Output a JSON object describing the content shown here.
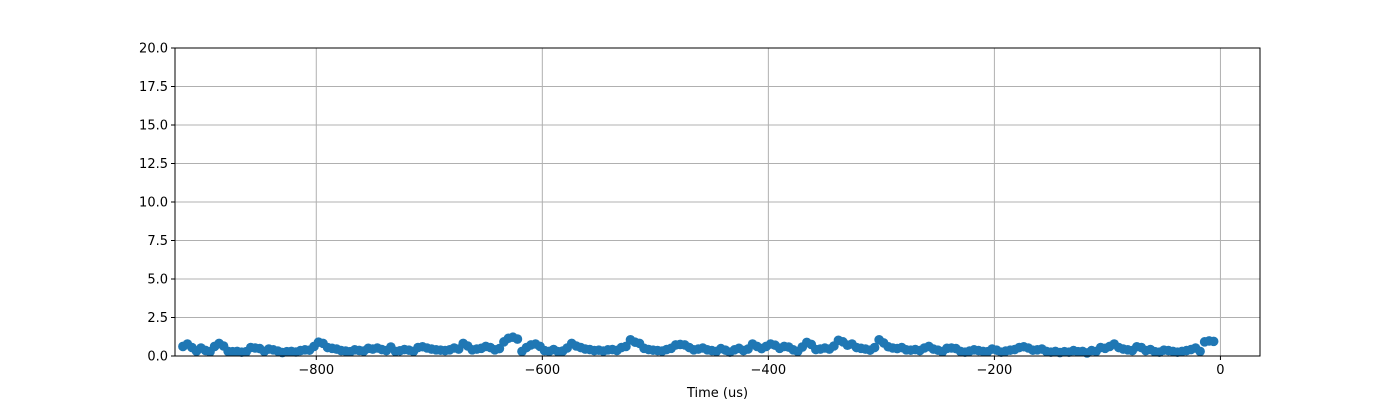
{
  "chart_data": {
    "type": "scatter",
    "title": "",
    "xlabel": "Time (us)",
    "ylabel": "",
    "xlim": [
      -925,
      35
    ],
    "ylim": [
      0,
      20
    ],
    "x_ticks": [
      -800,
      -600,
      -400,
      -200,
      0
    ],
    "x_tick_labels": [
      "−800",
      "−600",
      "−400",
      "−200",
      "0"
    ],
    "y_ticks": [
      0,
      2.5,
      5,
      7.5,
      10,
      12.5,
      15,
      17.5,
      20
    ],
    "y_tick_labels": [
      "0.0",
      "2.5",
      "5.0",
      "7.5",
      "10.0",
      "12.5",
      "15.0",
      "17.5",
      "20.0"
    ],
    "grid": true,
    "legend": "none",
    "series": [
      {
        "color": "#1f77b4",
        "points": [
          [
            -918,
            0.62
          ],
          [
            -914,
            0.78
          ],
          [
            -910,
            0.55
          ],
          [
            -906,
            0.32
          ],
          [
            -902,
            0.52
          ],
          [
            -898,
            0.36
          ],
          [
            -894,
            0.28
          ],
          [
            -890,
            0.62
          ],
          [
            -886,
            0.82
          ],
          [
            -882,
            0.65
          ],
          [
            -878,
            0.3
          ],
          [
            -874,
            0.28
          ],
          [
            -870,
            0.3
          ],
          [
            -866,
            0.25
          ],
          [
            -862,
            0.28
          ],
          [
            -858,
            0.55
          ],
          [
            -854,
            0.52
          ],
          [
            -850,
            0.48
          ],
          [
            -846,
            0.3
          ],
          [
            -842,
            0.45
          ],
          [
            -838,
            0.4
          ],
          [
            -834,
            0.32
          ],
          [
            -830,
            0.22
          ],
          [
            -826,
            0.28
          ],
          [
            -822,
            0.3
          ],
          [
            -818,
            0.26
          ],
          [
            -814,
            0.35
          ],
          [
            -810,
            0.4
          ],
          [
            -806,
            0.38
          ],
          [
            -802,
            0.62
          ],
          [
            -798,
            0.9
          ],
          [
            -794,
            0.82
          ],
          [
            -790,
            0.55
          ],
          [
            -786,
            0.5
          ],
          [
            -782,
            0.45
          ],
          [
            -778,
            0.35
          ],
          [
            -774,
            0.32
          ],
          [
            -770,
            0.28
          ],
          [
            -766,
            0.4
          ],
          [
            -762,
            0.36
          ],
          [
            -758,
            0.32
          ],
          [
            -754,
            0.5
          ],
          [
            -750,
            0.45
          ],
          [
            -746,
            0.52
          ],
          [
            -742,
            0.42
          ],
          [
            -738,
            0.35
          ],
          [
            -734,
            0.58
          ],
          [
            -730,
            0.3
          ],
          [
            -726,
            0.34
          ],
          [
            -722,
            0.42
          ],
          [
            -718,
            0.38
          ],
          [
            -714,
            0.3
          ],
          [
            -710,
            0.55
          ],
          [
            -706,
            0.6
          ],
          [
            -702,
            0.52
          ],
          [
            -698,
            0.45
          ],
          [
            -694,
            0.4
          ],
          [
            -690,
            0.38
          ],
          [
            -686,
            0.35
          ],
          [
            -682,
            0.4
          ],
          [
            -678,
            0.52
          ],
          [
            -674,
            0.45
          ],
          [
            -670,
            0.82
          ],
          [
            -666,
            0.65
          ],
          [
            -662,
            0.4
          ],
          [
            -658,
            0.45
          ],
          [
            -654,
            0.5
          ],
          [
            -650,
            0.62
          ],
          [
            -646,
            0.55
          ],
          [
            -642,
            0.4
          ],
          [
            -638,
            0.48
          ],
          [
            -634,
            0.92
          ],
          [
            -630,
            1.15
          ],
          [
            -626,
            1.22
          ],
          [
            -622,
            1.1
          ],
          [
            -618,
            0.3
          ],
          [
            -614,
            0.55
          ],
          [
            -610,
            0.72
          ],
          [
            -606,
            0.78
          ],
          [
            -602,
            0.62
          ],
          [
            -598,
            0.35
          ],
          [
            -594,
            0.3
          ],
          [
            -590,
            0.42
          ],
          [
            -586,
            0.28
          ],
          [
            -582,
            0.32
          ],
          [
            -578,
            0.52
          ],
          [
            -574,
            0.82
          ],
          [
            -570,
            0.65
          ],
          [
            -566,
            0.55
          ],
          [
            -562,
            0.45
          ],
          [
            -558,
            0.42
          ],
          [
            -554,
            0.35
          ],
          [
            -550,
            0.38
          ],
          [
            -546,
            0.32
          ],
          [
            -542,
            0.4
          ],
          [
            -538,
            0.42
          ],
          [
            -534,
            0.36
          ],
          [
            -530,
            0.55
          ],
          [
            -526,
            0.62
          ],
          [
            -522,
            1.05
          ],
          [
            -518,
            0.9
          ],
          [
            -514,
            0.82
          ],
          [
            -510,
            0.5
          ],
          [
            -506,
            0.42
          ],
          [
            -502,
            0.38
          ],
          [
            -498,
            0.35
          ],
          [
            -494,
            0.32
          ],
          [
            -490,
            0.42
          ],
          [
            -486,
            0.5
          ],
          [
            -482,
            0.72
          ],
          [
            -478,
            0.75
          ],
          [
            -474,
            0.72
          ],
          [
            -470,
            0.55
          ],
          [
            -466,
            0.4
          ],
          [
            -462,
            0.45
          ],
          [
            -458,
            0.52
          ],
          [
            -454,
            0.4
          ],
          [
            -450,
            0.35
          ],
          [
            -446,
            0.3
          ],
          [
            -442,
            0.48
          ],
          [
            -438,
            0.38
          ],
          [
            -434,
            0.25
          ],
          [
            -430,
            0.4
          ],
          [
            -426,
            0.5
          ],
          [
            -422,
            0.35
          ],
          [
            -418,
            0.45
          ],
          [
            -414,
            0.78
          ],
          [
            -410,
            0.62
          ],
          [
            -406,
            0.48
          ],
          [
            -402,
            0.62
          ],
          [
            -398,
            0.78
          ],
          [
            -394,
            0.7
          ],
          [
            -390,
            0.5
          ],
          [
            -386,
            0.62
          ],
          [
            -382,
            0.58
          ],
          [
            -378,
            0.4
          ],
          [
            -374,
            0.3
          ],
          [
            -370,
            0.58
          ],
          [
            -366,
            0.88
          ],
          [
            -362,
            0.75
          ],
          [
            -358,
            0.42
          ],
          [
            -354,
            0.45
          ],
          [
            -350,
            0.52
          ],
          [
            -346,
            0.45
          ],
          [
            -342,
            0.65
          ],
          [
            -338,
            1.02
          ],
          [
            -334,
            0.92
          ],
          [
            -330,
            0.7
          ],
          [
            -326,
            0.78
          ],
          [
            -322,
            0.55
          ],
          [
            -318,
            0.5
          ],
          [
            -314,
            0.45
          ],
          [
            -310,
            0.38
          ],
          [
            -306,
            0.55
          ],
          [
            -302,
            1.05
          ],
          [
            -298,
            0.85
          ],
          [
            -294,
            0.6
          ],
          [
            -290,
            0.52
          ],
          [
            -286,
            0.48
          ],
          [
            -282,
            0.55
          ],
          [
            -278,
            0.4
          ],
          [
            -274,
            0.38
          ],
          [
            -270,
            0.42
          ],
          [
            -266,
            0.35
          ],
          [
            -262,
            0.52
          ],
          [
            -258,
            0.62
          ],
          [
            -254,
            0.45
          ],
          [
            -250,
            0.38
          ],
          [
            -246,
            0.28
          ],
          [
            -242,
            0.5
          ],
          [
            -238,
            0.52
          ],
          [
            -234,
            0.48
          ],
          [
            -230,
            0.3
          ],
          [
            -226,
            0.25
          ],
          [
            -222,
            0.32
          ],
          [
            -218,
            0.4
          ],
          [
            -214,
            0.35
          ],
          [
            -210,
            0.3
          ],
          [
            -206,
            0.28
          ],
          [
            -202,
            0.45
          ],
          [
            -198,
            0.38
          ],
          [
            -194,
            0.25
          ],
          [
            -190,
            0.32
          ],
          [
            -186,
            0.38
          ],
          [
            -182,
            0.42
          ],
          [
            -178,
            0.55
          ],
          [
            -174,
            0.6
          ],
          [
            -170,
            0.52
          ],
          [
            -166,
            0.38
          ],
          [
            -162,
            0.4
          ],
          [
            -158,
            0.45
          ],
          [
            -154,
            0.3
          ],
          [
            -150,
            0.25
          ],
          [
            -146,
            0.3
          ],
          [
            -142,
            0.22
          ],
          [
            -138,
            0.28
          ],
          [
            -134,
            0.25
          ],
          [
            -130,
            0.35
          ],
          [
            -126,
            0.28
          ],
          [
            -122,
            0.3
          ],
          [
            -118,
            0.2
          ],
          [
            -114,
            0.35
          ],
          [
            -110,
            0.3
          ],
          [
            -106,
            0.55
          ],
          [
            -102,
            0.5
          ],
          [
            -98,
            0.62
          ],
          [
            -94,
            0.78
          ],
          [
            -90,
            0.55
          ],
          [
            -86,
            0.45
          ],
          [
            -82,
            0.4
          ],
          [
            -78,
            0.35
          ],
          [
            -74,
            0.6
          ],
          [
            -70,
            0.55
          ],
          [
            -66,
            0.35
          ],
          [
            -62,
            0.42
          ],
          [
            -58,
            0.28
          ],
          [
            -54,
            0.25
          ],
          [
            -50,
            0.38
          ],
          [
            -46,
            0.35
          ],
          [
            -42,
            0.3
          ],
          [
            -38,
            0.25
          ],
          [
            -34,
            0.3
          ],
          [
            -30,
            0.35
          ],
          [
            -26,
            0.42
          ],
          [
            -22,
            0.52
          ],
          [
            -18,
            0.3
          ],
          [
            -14,
            0.92
          ],
          [
            -10,
            0.98
          ],
          [
            -6,
            0.95
          ]
        ]
      }
    ]
  }
}
